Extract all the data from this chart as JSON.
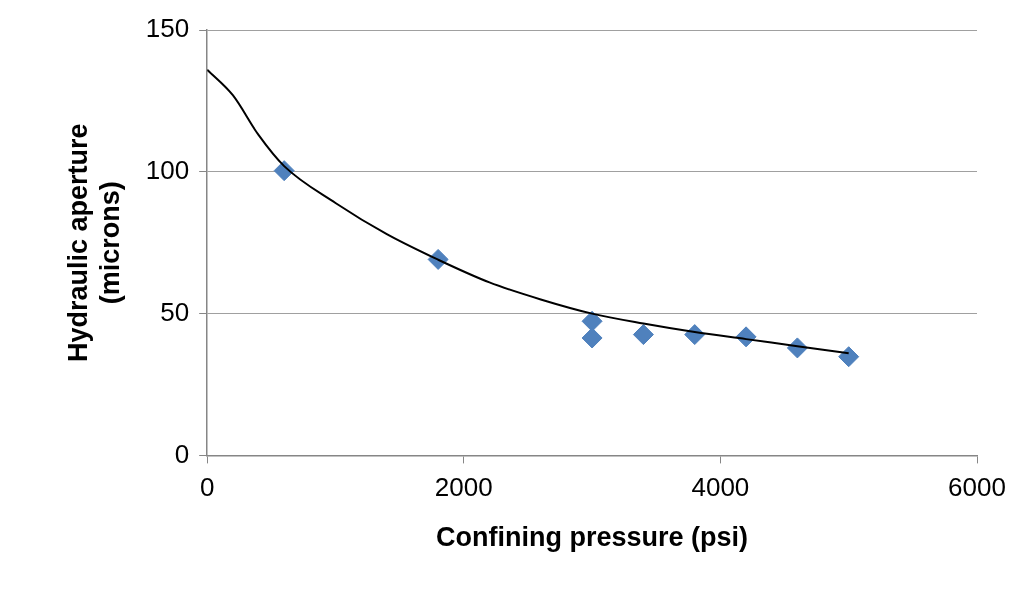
{
  "chart_data": {
    "type": "scatter",
    "xlabel": "Confining pressure (psi)",
    "ylabel": "Hydraulic aperture (microns)",
    "xlim": [
      0,
      6000
    ],
    "xticks": [
      0,
      2000,
      4000,
      6000
    ],
    "ylim": [
      0,
      150
    ],
    "yticks": [
      0,
      50,
      100,
      150
    ],
    "grid": "y",
    "legend": false,
    "marker": "diamond",
    "series": [
      {
        "color": "#4f81bd",
        "x": [
          600,
          1800,
          3000,
          3000,
          3400,
          3800,
          4200,
          4600,
          5000
        ],
        "values": [
          100.4,
          69.1,
          47.3,
          41.4,
          42.6,
          42.6,
          41.8,
          37.9,
          34.8
        ]
      },
      {
        "type": "line",
        "color": "#000000",
        "marker": "none",
        "x": [
          0,
          200,
          400,
          600,
          1000,
          1400,
          1800,
          2200,
          2600,
          3000,
          3400,
          3800,
          4200,
          4600,
          5000
        ],
        "values": [
          136,
          127,
          113,
          102,
          89,
          78,
          69,
          61,
          55,
          50,
          46.5,
          43.5,
          41,
          38.5,
          36
        ]
      }
    ]
  }
}
